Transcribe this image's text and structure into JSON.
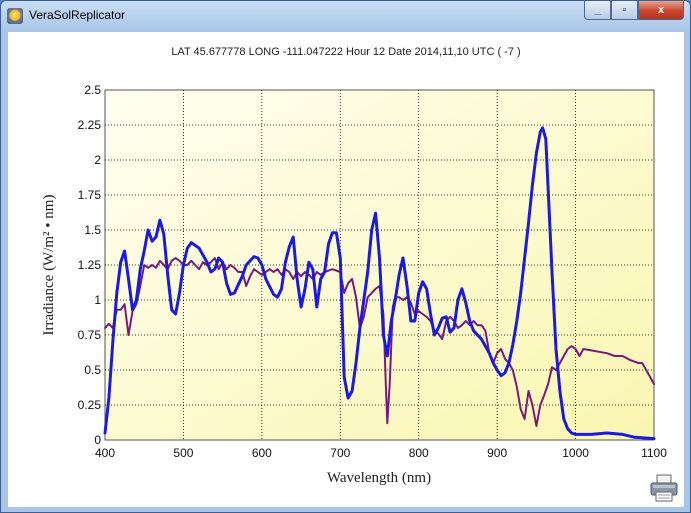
{
  "window": {
    "title": "VeraSolReplicator",
    "buttons": {
      "minimize": "_",
      "maximize": "▫",
      "close": "x"
    }
  },
  "header": {
    "info": "LAT 45.677778   LONG -111.047222   Hour 12   Date 2014,11,10   UTC ( -7 )"
  },
  "icons": [
    "app-icon",
    "minimize-icon",
    "maximize-icon",
    "close-icon",
    "printer-icon"
  ],
  "colors": {
    "plot_gradient_top": "#fffff0",
    "plot_gradient_bottom": "#fbf7b8",
    "series_blue": "#1b1be0",
    "series_purple": "#7a1a78"
  },
  "chart_data": {
    "type": "line",
    "xlabel": "Wavelength (nm)",
    "ylabel": "Irradiance (W/m² • nm)",
    "xlim": [
      400,
      1100
    ],
    "ylim": [
      0,
      2.5
    ],
    "xticks": [
      "400",
      "500",
      "600",
      "700",
      "800",
      "900",
      "1000",
      "1100"
    ],
    "yticks": [
      "0",
      "0.25",
      "0.5",
      "0.75",
      "1",
      "1.25",
      "1.5",
      "1.75",
      "2",
      "2.25",
      "2.5"
    ],
    "grid": true,
    "series": [
      {
        "color": "#1b1be0",
        "points": [
          [
            400,
            0.05
          ],
          [
            405,
            0.3
          ],
          [
            410,
            0.7
          ],
          [
            415,
            1.05
          ],
          [
            420,
            1.27
          ],
          [
            425,
            1.35
          ],
          [
            430,
            1.15
          ],
          [
            435,
            0.93
          ],
          [
            440,
            1.0
          ],
          [
            445,
            1.22
          ],
          [
            450,
            1.35
          ],
          [
            455,
            1.5
          ],
          [
            460,
            1.42
          ],
          [
            465,
            1.45
          ],
          [
            470,
            1.57
          ],
          [
            475,
            1.47
          ],
          [
            480,
            1.18
          ],
          [
            485,
            0.93
          ],
          [
            490,
            0.9
          ],
          [
            495,
            1.05
          ],
          [
            500,
            1.25
          ],
          [
            505,
            1.37
          ],
          [
            510,
            1.41
          ],
          [
            520,
            1.37
          ],
          [
            530,
            1.27
          ],
          [
            535,
            1.2
          ],
          [
            540,
            1.22
          ],
          [
            545,
            1.3
          ],
          [
            550,
            1.27
          ],
          [
            555,
            1.12
          ],
          [
            560,
            1.04
          ],
          [
            565,
            1.05
          ],
          [
            575,
            1.17
          ],
          [
            580,
            1.25
          ],
          [
            590,
            1.31
          ],
          [
            595,
            1.3
          ],
          [
            600,
            1.25
          ],
          [
            605,
            1.15
          ],
          [
            615,
            1.04
          ],
          [
            620,
            1.02
          ],
          [
            625,
            1.08
          ],
          [
            630,
            1.27
          ],
          [
            635,
            1.38
          ],
          [
            640,
            1.45
          ],
          [
            645,
            1.15
          ],
          [
            650,
            0.95
          ],
          [
            655,
            1.08
          ],
          [
            660,
            1.27
          ],
          [
            665,
            1.22
          ],
          [
            670,
            0.95
          ],
          [
            675,
            1.15
          ],
          [
            680,
            1.2
          ],
          [
            685,
            1.4
          ],
          [
            690,
            1.48
          ],
          [
            695,
            1.48
          ],
          [
            700,
            1.3
          ],
          [
            705,
            0.45
          ],
          [
            710,
            0.3
          ],
          [
            715,
            0.35
          ],
          [
            720,
            0.55
          ],
          [
            725,
            0.8
          ],
          [
            730,
            1.0
          ],
          [
            735,
            1.2
          ],
          [
            740,
            1.5
          ],
          [
            745,
            1.62
          ],
          [
            750,
            1.3
          ],
          [
            755,
            0.75
          ],
          [
            760,
            0.6
          ],
          [
            765,
            0.85
          ],
          [
            770,
            1.0
          ],
          [
            775,
            1.18
          ],
          [
            780,
            1.3
          ],
          [
            785,
            1.1
          ],
          [
            790,
            0.85
          ],
          [
            795,
            0.85
          ],
          [
            800,
            1.05
          ],
          [
            805,
            1.13
          ],
          [
            810,
            1.08
          ],
          [
            815,
            0.9
          ],
          [
            820,
            0.75
          ],
          [
            825,
            0.8
          ],
          [
            830,
            0.87
          ],
          [
            835,
            0.88
          ],
          [
            840,
            0.77
          ],
          [
            845,
            0.8
          ],
          [
            850,
            1.0
          ],
          [
            855,
            1.08
          ],
          [
            860,
            0.98
          ],
          [
            865,
            0.85
          ],
          [
            870,
            0.78
          ],
          [
            880,
            0.72
          ],
          [
            890,
            0.62
          ],
          [
            895,
            0.55
          ],
          [
            900,
            0.5
          ],
          [
            905,
            0.46
          ],
          [
            910,
            0.48
          ],
          [
            915,
            0.55
          ],
          [
            920,
            0.68
          ],
          [
            925,
            0.85
          ],
          [
            930,
            1.05
          ],
          [
            935,
            1.3
          ],
          [
            940,
            1.55
          ],
          [
            945,
            1.82
          ],
          [
            950,
            2.05
          ],
          [
            955,
            2.2
          ],
          [
            958,
            2.23
          ],
          [
            962,
            2.15
          ],
          [
            965,
            1.8
          ],
          [
            970,
            1.2
          ],
          [
            975,
            0.65
          ],
          [
            980,
            0.35
          ],
          [
            985,
            0.15
          ],
          [
            990,
            0.08
          ],
          [
            995,
            0.05
          ],
          [
            1000,
            0.04
          ],
          [
            1020,
            0.04
          ],
          [
            1040,
            0.05
          ],
          [
            1060,
            0.04
          ],
          [
            1075,
            0.02
          ],
          [
            1100,
            0.01
          ]
        ]
      },
      {
        "color": "#7a1a78",
        "points": [
          [
            400,
            0.8
          ],
          [
            405,
            0.83
          ],
          [
            410,
            0.8
          ],
          [
            415,
            0.93
          ],
          [
            420,
            0.93
          ],
          [
            425,
            0.97
          ],
          [
            430,
            0.75
          ],
          [
            435,
            0.92
          ],
          [
            440,
            0.97
          ],
          [
            445,
            1.1
          ],
          [
            450,
            1.25
          ],
          [
            455,
            1.23
          ],
          [
            460,
            1.25
          ],
          [
            465,
            1.23
          ],
          [
            470,
            1.28
          ],
          [
            475,
            1.25
          ],
          [
            480,
            1.22
          ],
          [
            485,
            1.28
          ],
          [
            490,
            1.3
          ],
          [
            495,
            1.28
          ],
          [
            500,
            1.25
          ],
          [
            505,
            1.25
          ],
          [
            510,
            1.28
          ],
          [
            515,
            1.25
          ],
          [
            520,
            1.22
          ],
          [
            525,
            1.27
          ],
          [
            530,
            1.25
          ],
          [
            535,
            1.27
          ],
          [
            540,
            1.3
          ],
          [
            545,
            1.22
          ],
          [
            550,
            1.27
          ],
          [
            555,
            1.22
          ],
          [
            560,
            1.25
          ],
          [
            565,
            1.23
          ],
          [
            570,
            1.2
          ],
          [
            575,
            1.2
          ],
          [
            580,
            1.1
          ],
          [
            585,
            1.17
          ],
          [
            590,
            1.22
          ],
          [
            595,
            1.2
          ],
          [
            600,
            1.18
          ],
          [
            610,
            1.22
          ],
          [
            615,
            1.2
          ],
          [
            620,
            1.22
          ],
          [
            625,
            1.18
          ],
          [
            630,
            1.22
          ],
          [
            635,
            1.2
          ],
          [
            640,
            1.15
          ],
          [
            645,
            1.2
          ],
          [
            650,
            1.17
          ],
          [
            655,
            1.2
          ],
          [
            660,
            1.18
          ],
          [
            665,
            1.15
          ],
          [
            670,
            1.2
          ],
          [
            675,
            1.18
          ],
          [
            680,
            1.2
          ],
          [
            690,
            1.22
          ],
          [
            700,
            1.2
          ],
          [
            705,
            1.05
          ],
          [
            710,
            1.12
          ],
          [
            715,
            1.15
          ],
          [
            720,
            1.02
          ],
          [
            725,
            0.8
          ],
          [
            730,
            0.88
          ],
          [
            735,
            1.02
          ],
          [
            740,
            1.05
          ],
          [
            745,
            1.08
          ],
          [
            750,
            1.1
          ],
          [
            755,
            0.9
          ],
          [
            758,
            0.4
          ],
          [
            760,
            0.12
          ],
          [
            763,
            0.4
          ],
          [
            767,
            0.95
          ],
          [
            770,
            1.02
          ],
          [
            775,
            1.02
          ],
          [
            780,
            1.0
          ],
          [
            785,
            1.02
          ],
          [
            790,
            0.98
          ],
          [
            795,
            0.9
          ],
          [
            800,
            0.92
          ],
          [
            805,
            0.9
          ],
          [
            810,
            0.88
          ],
          [
            815,
            0.85
          ],
          [
            820,
            0.78
          ],
          [
            825,
            0.76
          ],
          [
            830,
            0.72
          ],
          [
            835,
            0.85
          ],
          [
            840,
            0.88
          ],
          [
            845,
            0.85
          ],
          [
            850,
            0.8
          ],
          [
            855,
            0.82
          ],
          [
            860,
            0.85
          ],
          [
            865,
            0.82
          ],
          [
            870,
            0.85
          ],
          [
            875,
            0.82
          ],
          [
            880,
            0.82
          ],
          [
            885,
            0.78
          ],
          [
            890,
            0.62
          ],
          [
            895,
            0.55
          ],
          [
            900,
            0.62
          ],
          [
            905,
            0.65
          ],
          [
            910,
            0.58
          ],
          [
            915,
            0.55
          ],
          [
            920,
            0.5
          ],
          [
            925,
            0.38
          ],
          [
            930,
            0.22
          ],
          [
            935,
            0.15
          ],
          [
            940,
            0.35
          ],
          [
            945,
            0.25
          ],
          [
            950,
            0.1
          ],
          [
            955,
            0.25
          ],
          [
            960,
            0.32
          ],
          [
            965,
            0.4
          ],
          [
            970,
            0.52
          ],
          [
            975,
            0.5
          ],
          [
            980,
            0.55
          ],
          [
            985,
            0.6
          ],
          [
            990,
            0.65
          ],
          [
            995,
            0.67
          ],
          [
            1000,
            0.65
          ],
          [
            1005,
            0.6
          ],
          [
            1010,
            0.65
          ],
          [
            1020,
            0.64
          ],
          [
            1030,
            0.63
          ],
          [
            1040,
            0.62
          ],
          [
            1050,
            0.6
          ],
          [
            1060,
            0.6
          ],
          [
            1070,
            0.57
          ],
          [
            1080,
            0.55
          ],
          [
            1085,
            0.55
          ],
          [
            1090,
            0.5
          ],
          [
            1100,
            0.4
          ]
        ]
      }
    ]
  }
}
